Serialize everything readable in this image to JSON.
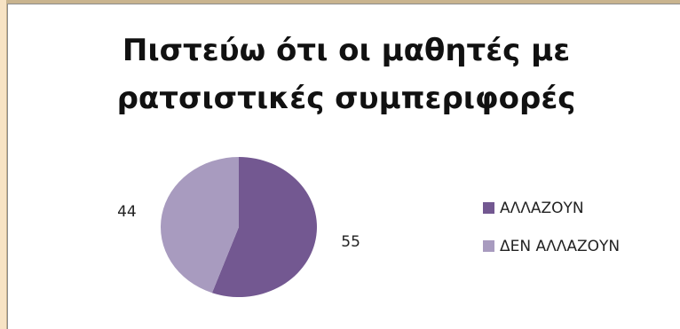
{
  "chart_data": {
    "type": "pie",
    "title": "Πιστεύω ότι οι μαθητές με ρατσιστικές συμπεριφορές",
    "title_lines": [
      "Πιστεύω ότι οι μαθητές με",
      "ρατσιστικές συμπεριφορές"
    ],
    "categories": [
      "ΑΛΛΑΖΟΥΝ",
      "ΔΕΝ ΑΛΛΑΖΟΥΝ"
    ],
    "values": [
      55,
      44
    ],
    "data_labels": [
      "55",
      "44"
    ],
    "colors": [
      "#735891",
      "#a89bbf"
    ],
    "legend": {
      "position": "right",
      "entries": [
        "ΑΛΛΑΖΟΥΝ",
        "ΔΕΝ ΑΛΛΑΖΟΥΝ"
      ]
    }
  }
}
